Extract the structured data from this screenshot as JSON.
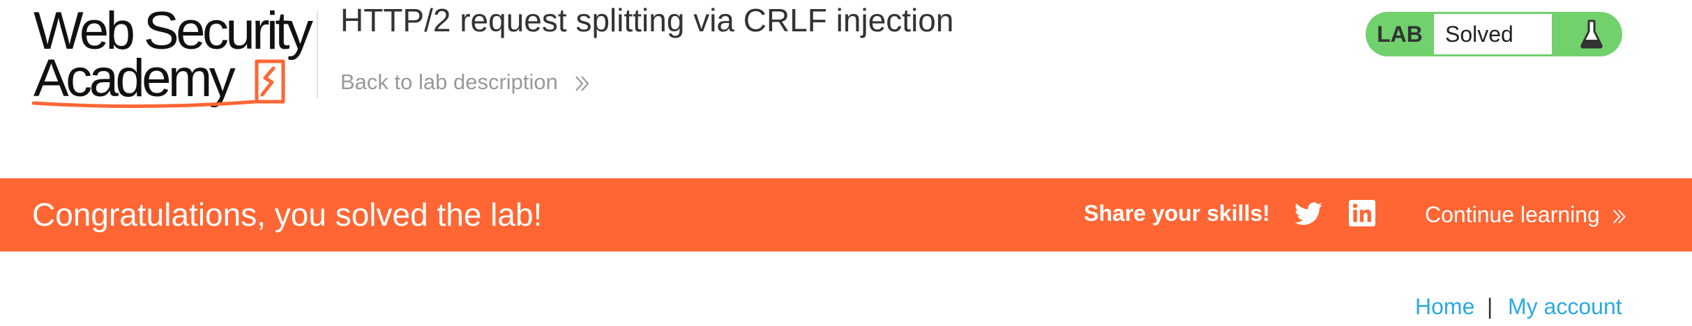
{
  "logo": {
    "line1": "Web Security",
    "line2": "Academy",
    "accent_color": "#ff6633"
  },
  "header": {
    "title": "HTTP/2 request splitting via CRLF injection",
    "back_link": "Back to lab description",
    "back_icon": "double-chevron-right-icon"
  },
  "status": {
    "label": "LAB",
    "value": "Solved",
    "icon": "flask-icon",
    "color": "#70d16d"
  },
  "banner": {
    "message": "Congratulations, you solved the lab!",
    "share_label": "Share your skills!",
    "twitter_icon": "twitter-icon",
    "linkedin_icon": "linkedin-icon",
    "continue_label": "Continue learning",
    "background": "#ff6633"
  },
  "nav": {
    "home": "Home",
    "separator": "|",
    "account": "My account",
    "link_color": "#29a9e0"
  }
}
